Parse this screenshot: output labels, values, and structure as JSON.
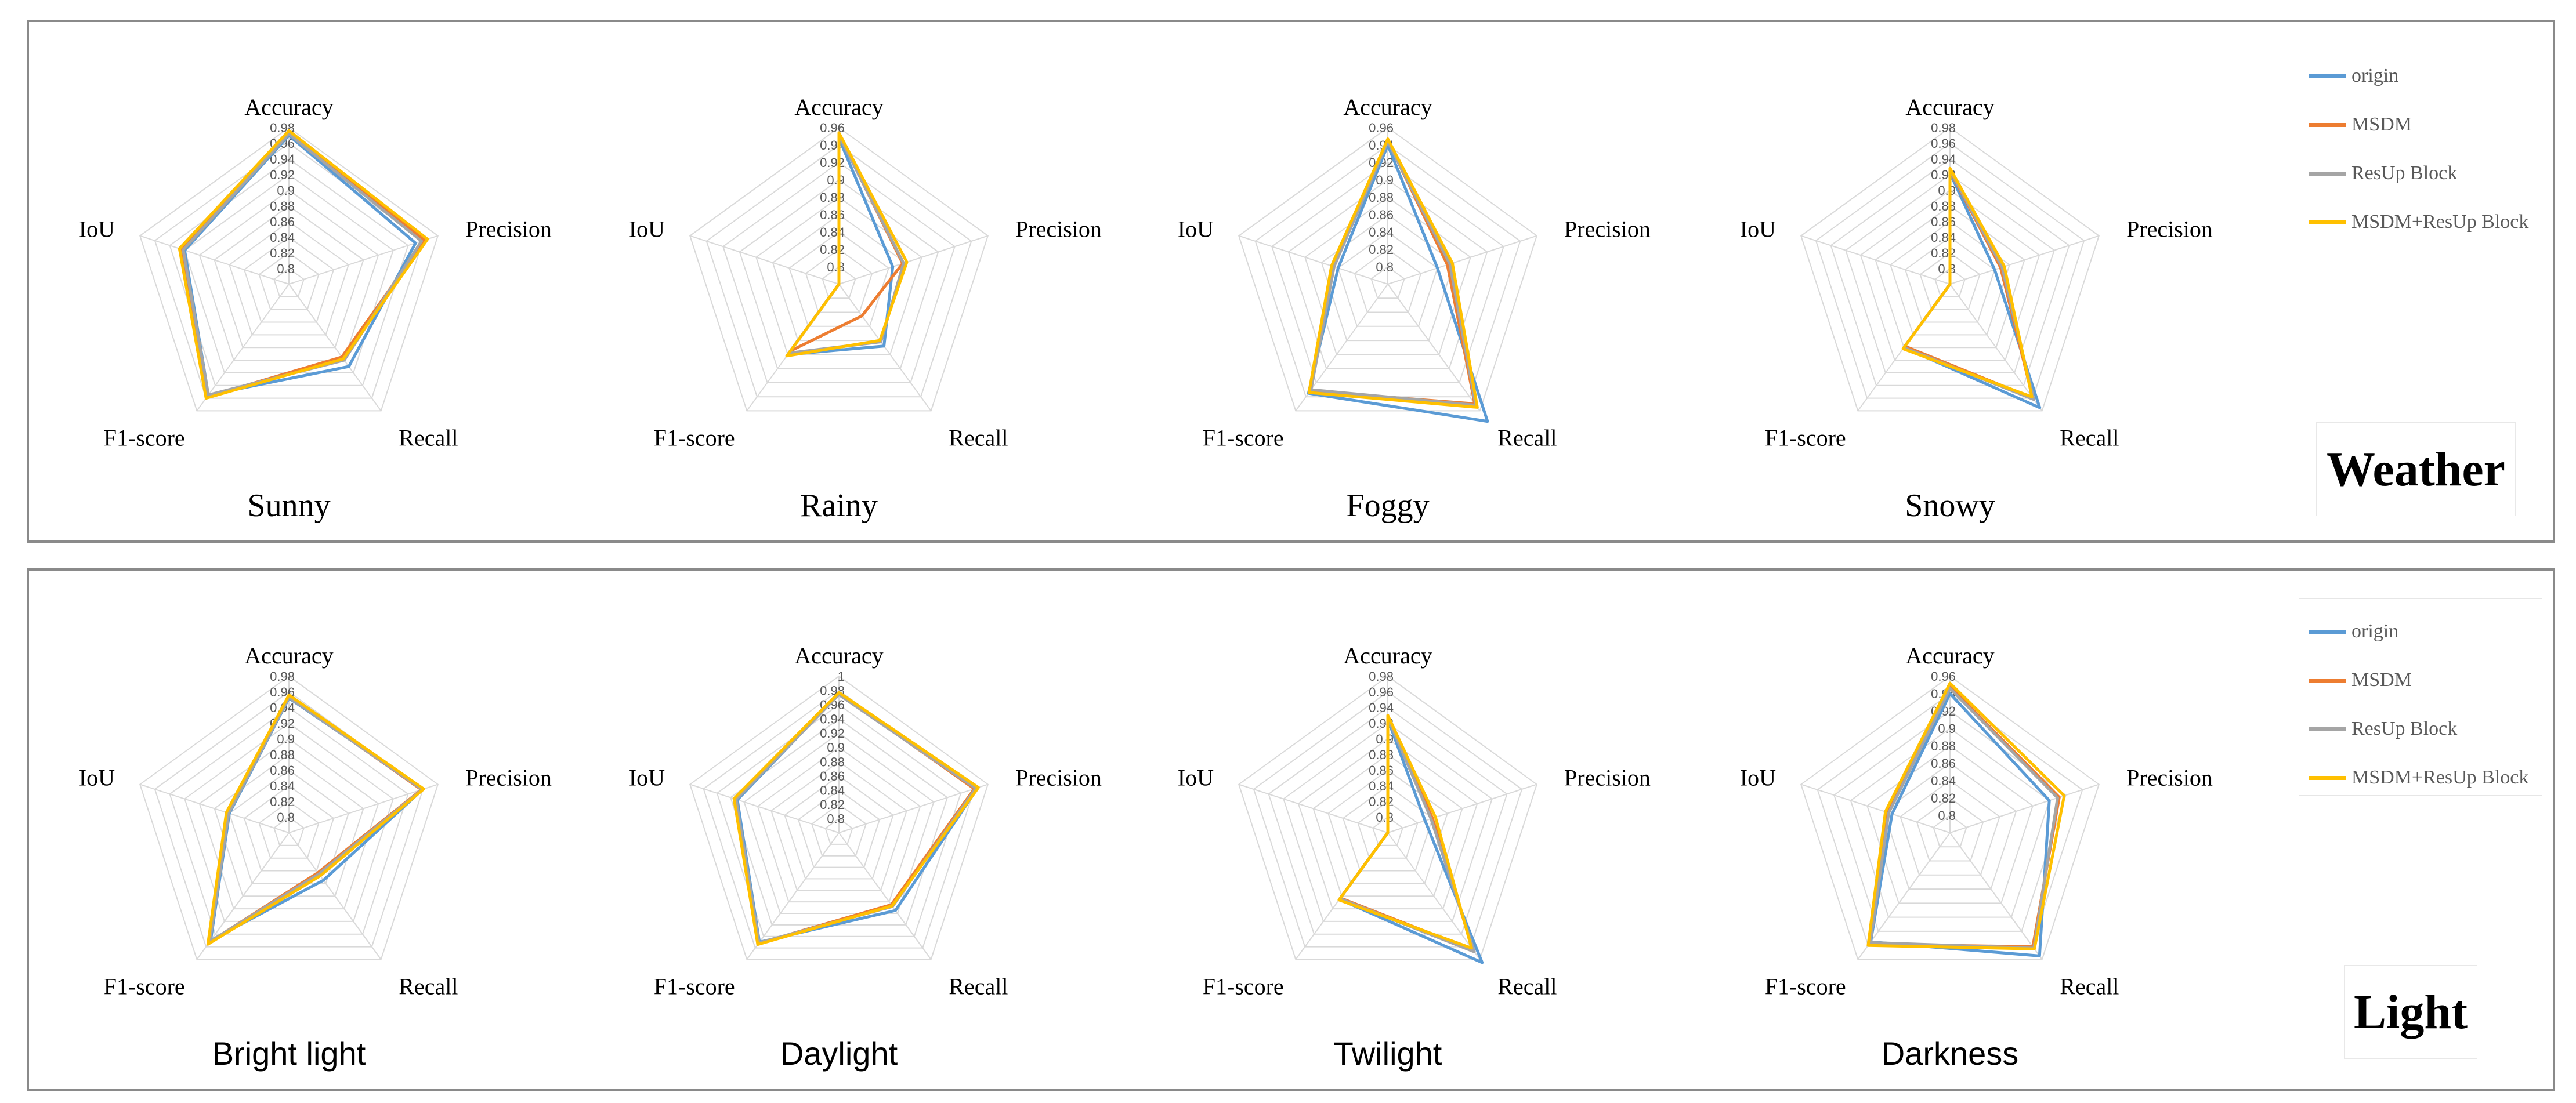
{
  "colors": {
    "origin": "#5b9bd5",
    "MSDM": "#ed7d31",
    "ResUp Block": "#a5a5a5",
    "MSDM+ResUp Block": "#ffc000",
    "grid": "#d9d9d9",
    "tick": "#595959"
  },
  "groups": [
    {
      "id": "weather",
      "badge": "Weather",
      "legend": [
        "origin",
        "MSDM",
        "ResUp Block",
        "MSDM+ResUp Block"
      ]
    },
    {
      "id": "light",
      "badge": "Light",
      "legend": [
        "origin",
        "MSDM",
        "ResUp Block",
        "MSDM+ResUp Block"
      ]
    }
  ],
  "chart_data": [
    {
      "type": "radar",
      "group": "weather",
      "title": "Sunny",
      "axes": [
        "Accuracy",
        "Precision",
        "Recall",
        "F1-score",
        "IoU"
      ],
      "ticks": [
        "0.8",
        "0.82",
        "0.84",
        "0.86",
        "0.88",
        "0.9",
        "0.92",
        "0.94",
        "0.96",
        "0.98"
      ],
      "range": [
        0.78,
        0.98
      ],
      "series": [
        {
          "name": "origin",
          "values": [
            0.97,
            0.95,
            0.91,
            0.955,
            0.92
          ]
        },
        {
          "name": "MSDM",
          "values": [
            0.973,
            0.962,
            0.895,
            0.958,
            0.925
          ]
        },
        {
          "name": "ResUp Block",
          "values": [
            0.972,
            0.958,
            0.9,
            0.955,
            0.922
          ]
        },
        {
          "name": "MSDM+ResUp Block",
          "values": [
            0.976,
            0.966,
            0.898,
            0.96,
            0.927
          ]
        }
      ]
    },
    {
      "type": "radar",
      "group": "weather",
      "title": "Rainy",
      "axes": [
        "Accuracy",
        "Precision",
        "Recall",
        "F1-score",
        "IoU"
      ],
      "ticks": [
        "0.8",
        "0.82",
        "0.84",
        "0.86",
        "0.88",
        "0.9",
        "0.92",
        "0.94",
        "0.96"
      ],
      "range": [
        0.78,
        0.96
      ],
      "series": [
        {
          "name": "origin",
          "values": [
            0.948,
            0.845,
            0.868,
            0.88,
            0.735
          ]
        },
        {
          "name": "MSDM",
          "values": [
            0.952,
            0.857,
            0.825,
            0.875,
            0.735
          ]
        },
        {
          "name": "ResUp Block",
          "values": [
            0.951,
            0.858,
            0.862,
            0.878,
            0.735
          ]
        },
        {
          "name": "MSDM+ResUp Block",
          "values": [
            0.954,
            0.862,
            0.86,
            0.882,
            0.735
          ]
        }
      ]
    },
    {
      "type": "radar",
      "group": "weather",
      "title": "Foggy",
      "axes": [
        "Accuracy",
        "Precision",
        "Recall",
        "F1-score",
        "IoU"
      ],
      "ticks": [
        "0.8",
        "0.82",
        "0.84",
        "0.86",
        "0.88",
        "0.9",
        "0.92",
        "0.94",
        "0.96"
      ],
      "range": [
        0.78,
        0.96
      ],
      "series": [
        {
          "name": "origin",
          "values": [
            0.94,
            0.84,
            0.975,
            0.935,
            0.84
          ]
        },
        {
          "name": "MSDM",
          "values": [
            0.945,
            0.852,
            0.95,
            0.932,
            0.845
          ]
        },
        {
          "name": "ResUp Block",
          "values": [
            0.944,
            0.855,
            0.952,
            0.93,
            0.845
          ]
        },
        {
          "name": "MSDM+ResUp Block",
          "values": [
            0.947,
            0.858,
            0.955,
            0.934,
            0.848
          ]
        }
      ]
    },
    {
      "type": "radar",
      "group": "weather",
      "title": "Snowy",
      "axes": [
        "Accuracy",
        "Precision",
        "Recall",
        "F1-score",
        "IoU"
      ],
      "ticks": [
        "0.8",
        "0.82",
        "0.84",
        "0.86",
        "0.88",
        "0.9",
        "0.92",
        "0.94",
        "0.96",
        "0.98"
      ],
      "range": [
        0.78,
        0.98
      ],
      "series": [
        {
          "name": "origin",
          "values": [
            0.922,
            0.84,
            0.975,
            0.88,
            0.74
          ]
        },
        {
          "name": "MSDM",
          "values": [
            0.925,
            0.848,
            0.96,
            0.878,
            0.74
          ]
        },
        {
          "name": "ResUp Block",
          "values": [
            0.926,
            0.85,
            0.962,
            0.88,
            0.74
          ]
        },
        {
          "name": "MSDM+ResUp Block",
          "values": [
            0.928,
            0.853,
            0.958,
            0.882,
            0.74
          ]
        }
      ]
    },
    {
      "type": "radar",
      "group": "light",
      "title": "Bright light",
      "axes": [
        "Accuracy",
        "Precision",
        "Recall",
        "F1-score",
        "IoU"
      ],
      "ticks": [
        "0.8",
        "0.82",
        "0.84",
        "0.86",
        "0.88",
        "0.9",
        "0.92",
        "0.94",
        "0.96",
        "0.98"
      ],
      "range": [
        0.78,
        0.98
      ],
      "series": [
        {
          "name": "origin",
          "values": [
            0.952,
            0.96,
            0.855,
            0.95,
            0.86
          ]
        },
        {
          "name": "MSDM",
          "values": [
            0.954,
            0.958,
            0.843,
            0.953,
            0.862
          ]
        },
        {
          "name": "ResUp Block",
          "values": [
            0.953,
            0.959,
            0.845,
            0.952,
            0.861
          ]
        },
        {
          "name": "MSDM+ResUp Block",
          "values": [
            0.956,
            0.961,
            0.848,
            0.956,
            0.864
          ]
        }
      ]
    },
    {
      "type": "radar",
      "group": "light",
      "title": "Daylight",
      "axes": [
        "Accuracy",
        "Precision",
        "Recall",
        "F1-score",
        "IoU"
      ],
      "ticks": [
        "0.8",
        "0.82",
        "0.84",
        "0.86",
        "0.88",
        "0.9",
        "0.92",
        "0.94",
        "0.96",
        "0.98",
        "1"
      ],
      "range": [
        0.78,
        1.0
      ],
      "series": [
        {
          "name": "origin",
          "values": [
            0.975,
            0.985,
            0.915,
            0.97,
            0.93
          ]
        },
        {
          "name": "MSDM",
          "values": [
            0.976,
            0.98,
            0.905,
            0.972,
            0.933
          ]
        },
        {
          "name": "ResUp Block",
          "values": [
            0.974,
            0.982,
            0.908,
            0.971,
            0.932
          ]
        },
        {
          "name": "MSDM+ResUp Block",
          "values": [
            0.977,
            0.986,
            0.907,
            0.974,
            0.935
          ]
        }
      ]
    },
    {
      "type": "radar",
      "group": "light",
      "title": "Twilight",
      "axes": [
        "Accuracy",
        "Precision",
        "Recall",
        "F1-score",
        "IoU"
      ],
      "ticks": [
        "0.8",
        "0.82",
        "0.84",
        "0.86",
        "0.88",
        "0.9",
        "0.92",
        "0.94",
        "0.96",
        "0.98"
      ],
      "range": [
        0.78,
        0.98
      ],
      "series": [
        {
          "name": "origin",
          "values": [
            0.925,
            0.83,
            0.985,
            0.885,
            0.745
          ]
        },
        {
          "name": "MSDM",
          "values": [
            0.928,
            0.84,
            0.965,
            0.883,
            0.745
          ]
        },
        {
          "name": "ResUp Block",
          "values": [
            0.927,
            0.838,
            0.968,
            0.884,
            0.745
          ]
        },
        {
          "name": "MSDM+ResUp Block",
          "values": [
            0.93,
            0.844,
            0.962,
            0.886,
            0.745
          ]
        }
      ]
    },
    {
      "type": "radar",
      "group": "light",
      "title": "Darkness",
      "axes": [
        "Accuracy",
        "Precision",
        "Recall",
        "F1-score",
        "IoU"
      ],
      "ticks": [
        "0.8",
        "0.82",
        "0.84",
        "0.86",
        "0.88",
        "0.9",
        "0.92",
        "0.94",
        "0.96"
      ],
      "range": [
        0.78,
        0.96
      ],
      "series": [
        {
          "name": "origin",
          "values": [
            0.94,
            0.9,
            0.955,
            0.935,
            0.85
          ]
        },
        {
          "name": "MSDM",
          "values": [
            0.948,
            0.912,
            0.942,
            0.938,
            0.855
          ]
        },
        {
          "name": "ResUp Block",
          "values": [
            0.946,
            0.91,
            0.944,
            0.936,
            0.854
          ]
        },
        {
          "name": "MSDM+ResUp Block",
          "values": [
            0.952,
            0.918,
            0.945,
            0.94,
            0.858
          ]
        }
      ]
    }
  ]
}
